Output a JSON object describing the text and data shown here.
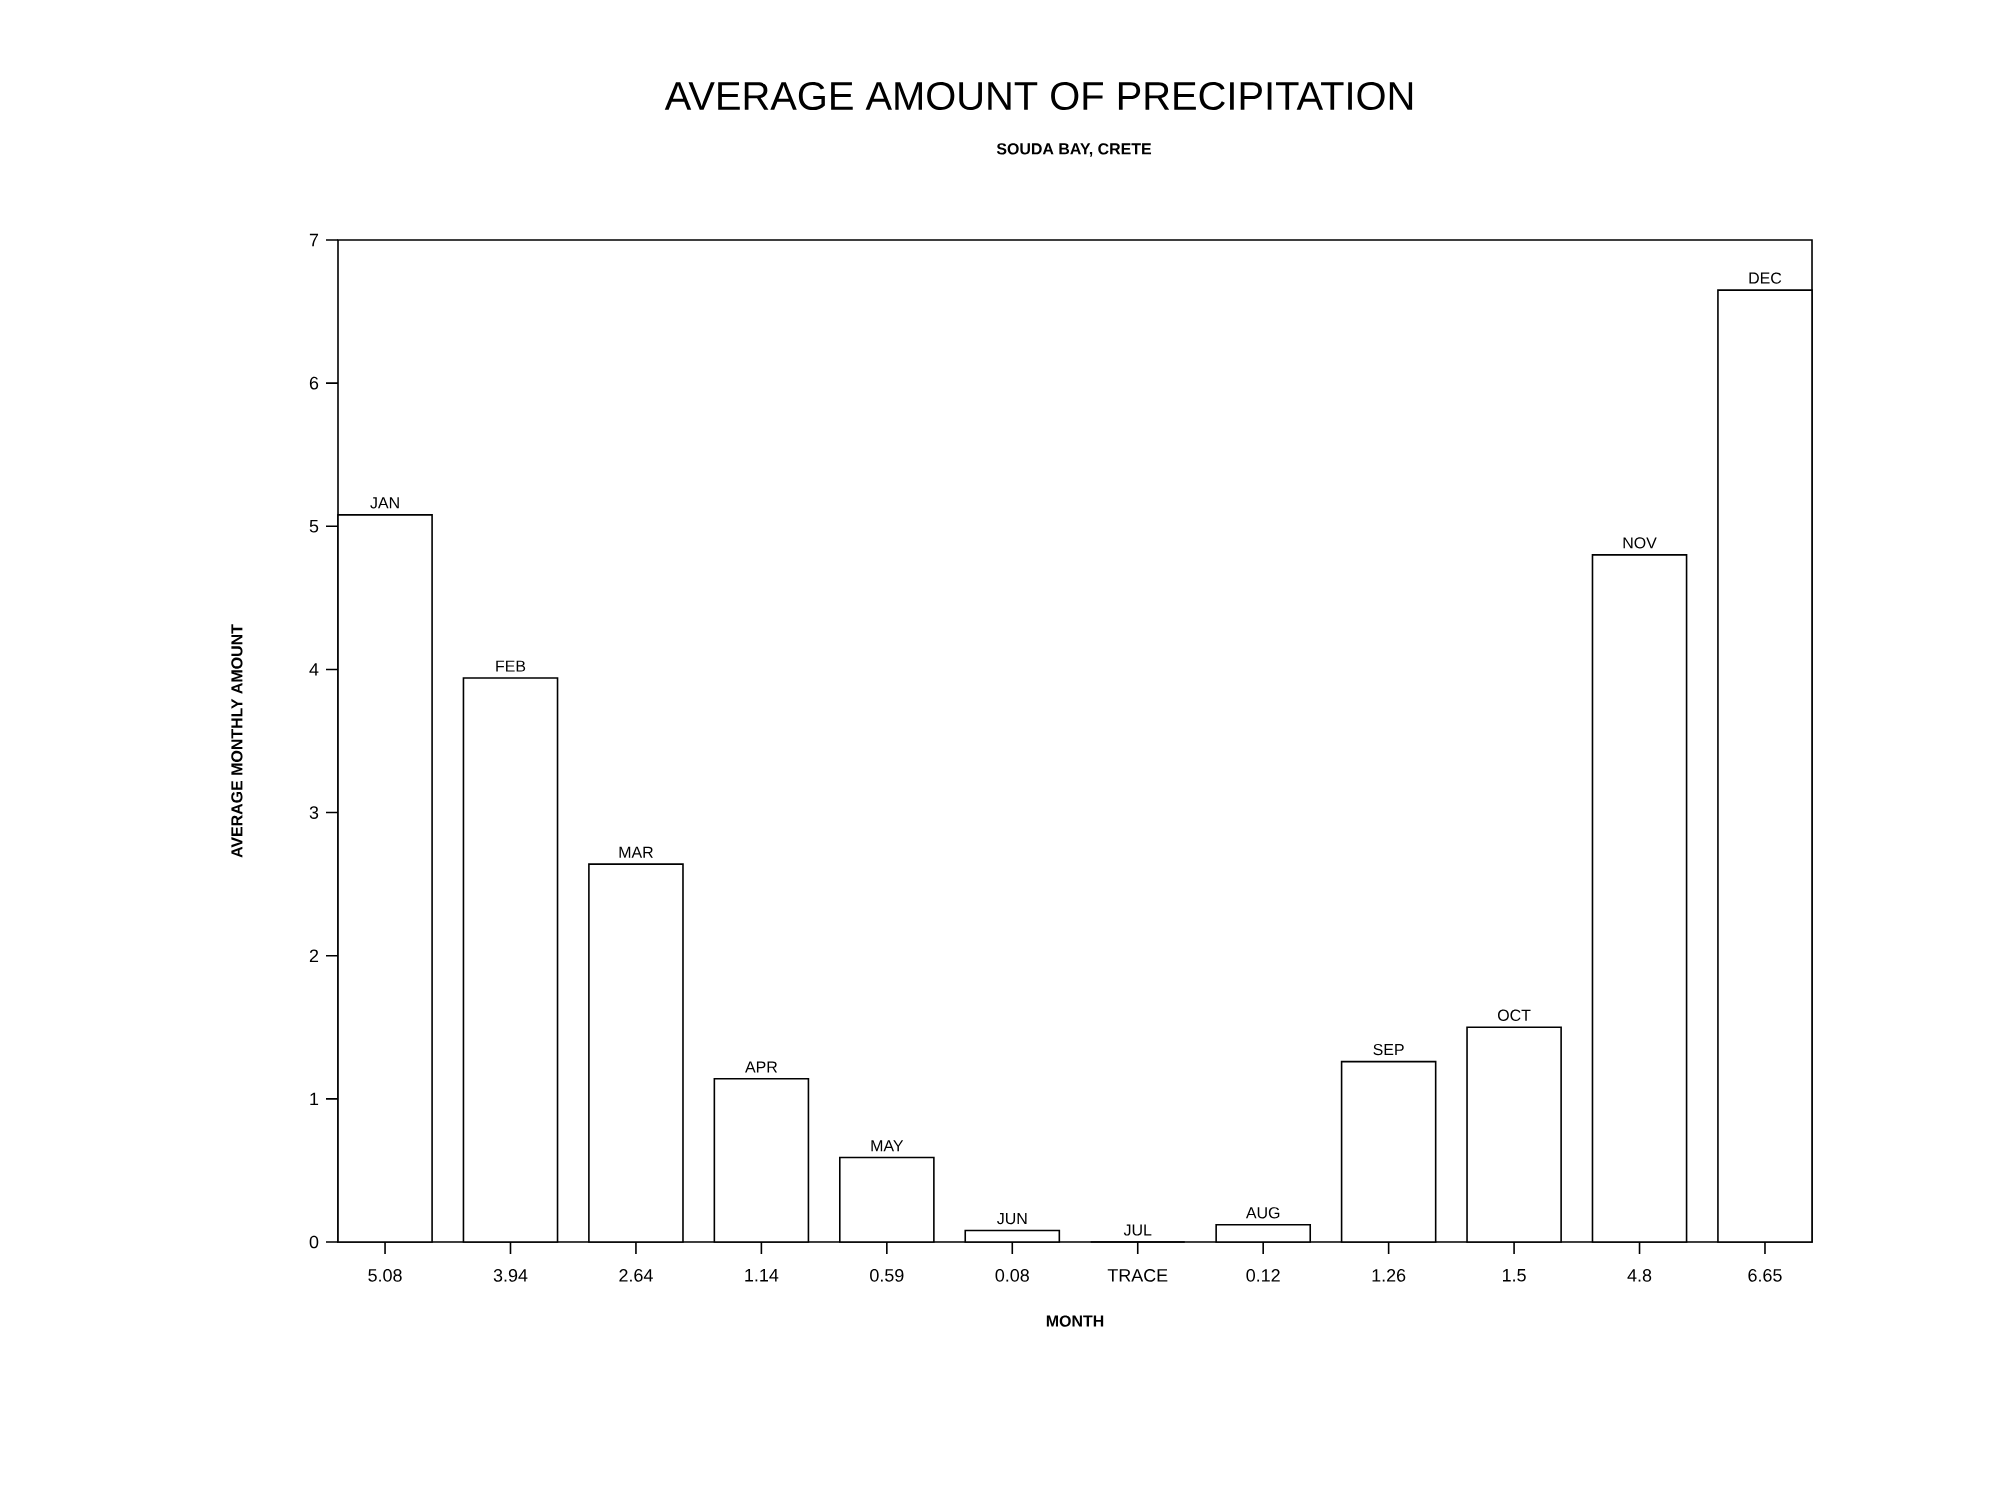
{
  "chart_data": {
    "type": "bar",
    "title": "AVERAGE AMOUNT OF PRECIPITATION",
    "subtitle": "SOUDA BAY, CRETE",
    "xlabel": "MONTH",
    "ylabel": "AVERAGE MONTHLY AMOUNT",
    "categories": [
      "5.08",
      "3.94",
      "2.64",
      "1.14",
      "0.59",
      "0.08",
      "TRACE",
      "0.12",
      "1.26",
      "1.5",
      "4.8",
      "6.65"
    ],
    "values": [
      5.08,
      3.94,
      2.64,
      1.14,
      0.59,
      0.08,
      0,
      0.12,
      1.26,
      1.5,
      4.8,
      6.65
    ],
    "color": "#000000",
    "ylim": [
      0,
      7
    ],
    "yticks": [
      0,
      1,
      2,
      3,
      4,
      5,
      6,
      7
    ],
    "grid": false,
    "annotations": [
      {
        "text": "JAN",
        "x": "5.08",
        "y": 5.08
      },
      {
        "text": "FEB",
        "x": "3.94",
        "y": 3.94
      },
      {
        "text": "MAR",
        "x": "2.64",
        "y": 2.64
      },
      {
        "text": "APR",
        "x": "1.14",
        "y": 1.14
      },
      {
        "text": "MAY",
        "x": "0.59",
        "y": 0.59
      },
      {
        "text": "JUN",
        "x": "0.08",
        "y": 0.08
      },
      {
        "text": "JUL",
        "x": "TRACE",
        "y": 0
      },
      {
        "text": "AUG",
        "x": "0.12",
        "y": 0.12
      },
      {
        "text": "SEP",
        "x": "1.26",
        "y": 1.26
      },
      {
        "text": "OCT",
        "x": "1.5",
        "y": 1.5
      },
      {
        "text": "NOV",
        "x": "4.8",
        "y": 4.8
      },
      {
        "text": "DEC",
        "x": "6.65",
        "y": 6.65
      }
    ]
  }
}
